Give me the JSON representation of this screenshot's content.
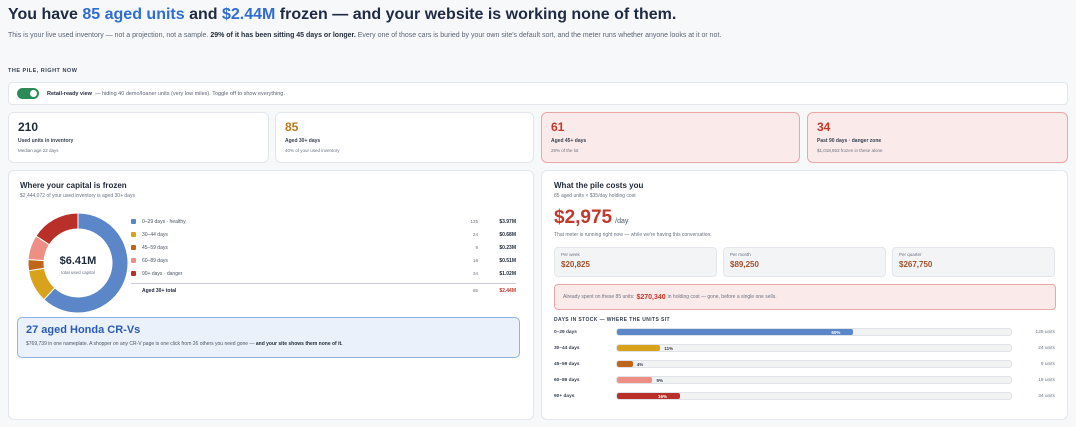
{
  "header": {
    "title_pre": "You have ",
    "title_units": "85 aged units",
    "title_mid": " and ",
    "title_money": "$2.44M",
    "title_post": " frozen — and your website is working none of them.",
    "sub_pre": "This is your live used inventory — not a projection, not a sample. ",
    "sub_bold": "29% of it has been sitting 45 days or longer.",
    "sub_post": " Every one of those cars is buried by your own site's default sort, and the meter runs whether anyone looks at it or not."
  },
  "section_label": "THE PILE, RIGHT NOW",
  "retail_toggle": {
    "label": "Retail-ready view",
    "desc": "— hiding 40 demo/loaner units (very low miles). Toggle off to show everything.",
    "on": true
  },
  "stat_cards": [
    {
      "value": "210",
      "label": "Used units in inventory",
      "hint": "Median age 22 days",
      "color": "#1f2937"
    },
    {
      "value": "85",
      "label": "Aged 30+ days",
      "hint": "40% of your used inventory",
      "color": "#b7791f"
    },
    {
      "value": "61",
      "label": "Aged 45+ days",
      "hint": "29% of the lot",
      "color": "#c0392b"
    },
    {
      "value": "34",
      "label": "Past 90 days · danger zone",
      "hint": "$1,018,653 frozen in these alone",
      "color": "#c0392b"
    }
  ],
  "capital": {
    "title": "Where your capital is frozen",
    "subtitle": "$2,444,072 of your used inventory is aged 30+ days",
    "center_value": "$6.41M",
    "center_label": "total used capital",
    "rows": [
      {
        "label": "0–29 days · healthy",
        "count": "125",
        "amount": "$3.97M",
        "color": "#5b86c8"
      },
      {
        "label": "30–44 days",
        "count": "24",
        "amount": "$0.68M",
        "color": "#d9a21b"
      },
      {
        "label": "45–59 days",
        "count": "9",
        "amount": "$0.23M",
        "color": "#c0661a"
      },
      {
        "label": "60–89 days",
        "count": "18",
        "amount": "$0.51M",
        "color": "#ee8f86"
      },
      {
        "label": "90+ days · danger",
        "count": "34",
        "amount": "$1.02M",
        "color": "#b9302b"
      }
    ],
    "total": {
      "label": "Aged 30+ total",
      "count": "85",
      "amount": "$2.44M"
    },
    "donut_values": [
      3.97,
      0.68,
      0.23,
      0.51,
      1.02
    ]
  },
  "callout": {
    "title": "27 aged Honda CR-Vs",
    "text": "$769,739 in one nameplate. A shopper on any CR-V page is one click from 26 others you need gone — ",
    "text_bold": "and your site shows them none of it."
  },
  "costs": {
    "title": "What the pile costs you",
    "subtitle": "85 aged units × $35/day holding cost",
    "value": "$2,975",
    "unit": "/day",
    "note": "That meter is running right now — while we're having this conversation.",
    "tiles": [
      {
        "label": "Per week",
        "value": "$20,825"
      },
      {
        "label": "Per month",
        "value": "$89,250"
      },
      {
        "label": "Per quarter",
        "value": "$267,750"
      }
    ],
    "spent_pre": "Already spent on these 85 units:",
    "spent_value": "$270,340",
    "spent_post": "in holding cost — gone, before a single one sells."
  },
  "days_in_stock": {
    "label": "DAYS IN STOCK — WHERE THE UNITS SIT",
    "bars": [
      {
        "label": "0–29 days",
        "pct": 60,
        "pct_text": "60%",
        "units": "125 units",
        "color": "#5b86c8",
        "text_color": "#ffffff"
      },
      {
        "label": "30–44 days",
        "pct": 11,
        "pct_text": "11%",
        "units": "24 units",
        "color": "#d9a21b",
        "text_color": "#374151"
      },
      {
        "label": "45–59 days",
        "pct": 4,
        "pct_text": "4%",
        "units": "9 units",
        "color": "#c0661a",
        "text_color": "#374151"
      },
      {
        "label": "60–89 days",
        "pct": 9,
        "pct_text": "9%",
        "units": "18 units",
        "color": "#ee8f86",
        "text_color": "#374151"
      },
      {
        "label": "90+ days",
        "pct": 16,
        "pct_text": "16%",
        "units": "34 units",
        "color": "#b9302b",
        "text_color": "#ffffff"
      }
    ]
  }
}
